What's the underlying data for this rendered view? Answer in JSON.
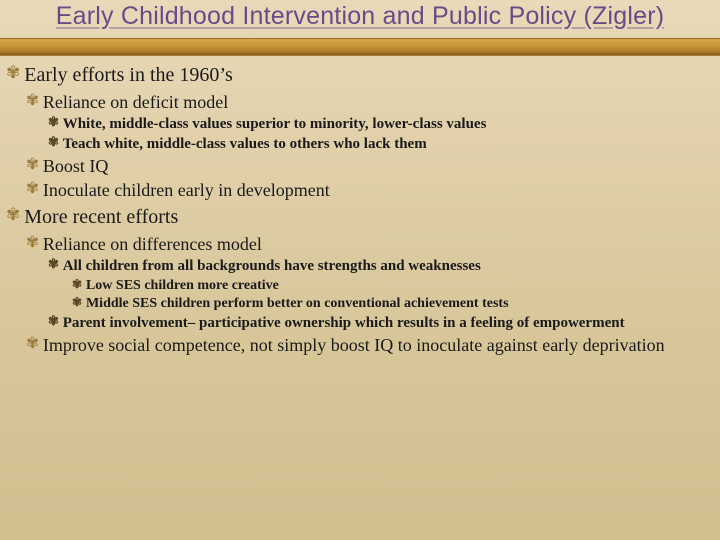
{
  "title": "Early Childhood Intervention and Public Policy (Zigler)",
  "colors": {
    "title_color": "#6b4a8a",
    "bullet_light": "#9a7a3a",
    "bullet_dark": "#5a4a2a",
    "bg_top": "#e8d9b8",
    "bg_bottom": "#d2bf90",
    "ribbon_top": "#d4a84f",
    "ribbon_bottom": "#8a5a20"
  },
  "fonts": {
    "title_family": "Segoe UI, Candara, sans-serif",
    "body_family": "Georgia, serif",
    "title_size_pt": 19,
    "l1_size_pt": 15,
    "l2_size_pt": 13,
    "l3_size_pt": 11,
    "l4_size_pt": 10
  },
  "bullet_char": "➿",
  "outline": {
    "a": "Early efforts in the 1960’s",
    "a1": "Reliance on deficit model",
    "a1a": "White, middle-class values superior to minority, lower-class values",
    "a1b": "Teach white, middle-class values to others who lack them",
    "a2": "Boost IQ",
    "a3": "Inoculate children early in development",
    "b": "More recent efforts",
    "b1": "Reliance on differences model",
    "b1a": "All children from all backgrounds have strengths and weaknesses",
    "b1a1": "Low SES children more creative",
    "b1a2": "Middle SES children perform better on conventional achievement tests",
    "b1b": "Parent involvement– participative ownership which results in a feeling of empowerment",
    "b2": "Improve social competence, not simply boost IQ to inoculate against early deprivation"
  }
}
